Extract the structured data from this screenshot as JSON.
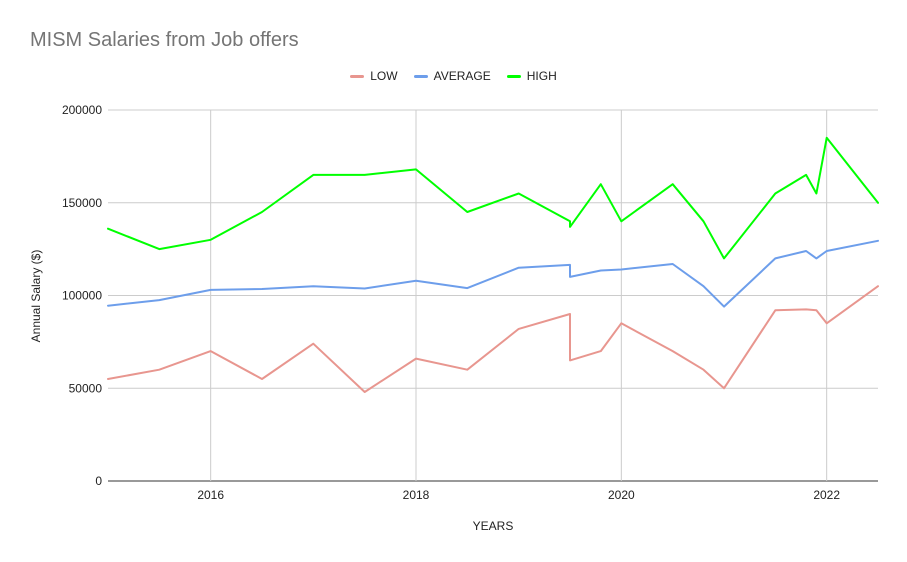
{
  "chart_data": {
    "type": "line",
    "title": "MISM Salaries from Job offers",
    "xlabel": "YEARS",
    "ylabel": "Annual Salary ($)",
    "xlim": [
      2015,
      2022.5
    ],
    "ylim": [
      0,
      200000
    ],
    "x_ticks": [
      2016,
      2018,
      2020,
      2022
    ],
    "x_tick_labels": [
      "2016",
      "2018",
      "2020",
      "2022"
    ],
    "y_ticks": [
      0,
      50000,
      100000,
      150000,
      200000
    ],
    "y_tick_labels": [
      "0",
      "50000",
      "100000",
      "150000",
      "200000"
    ],
    "grid": true,
    "legend_position": "top",
    "series": [
      {
        "name": "LOW",
        "color": "#e8968f",
        "points": [
          [
            2015,
            55000
          ],
          [
            2015.5,
            60000
          ],
          [
            2016,
            70000
          ],
          [
            2016.5,
            55000
          ],
          [
            2017,
            74000
          ],
          [
            2017.5,
            48000
          ],
          [
            2018,
            66000
          ],
          [
            2018.5,
            60000
          ],
          [
            2019,
            82000
          ],
          [
            2019.5,
            90000
          ],
          [
            2019.5,
            65000
          ],
          [
            2019.8,
            70000
          ],
          [
            2020,
            85000
          ],
          [
            2020.5,
            70000
          ],
          [
            2020.8,
            60000
          ],
          [
            2021,
            50000
          ],
          [
            2021.5,
            92000
          ],
          [
            2021.8,
            92500
          ],
          [
            2021.9,
            92000
          ],
          [
            2022,
            85000
          ],
          [
            2022.5,
            105000
          ]
        ]
      },
      {
        "name": "AVERAGE",
        "color": "#6d9eeb",
        "points": [
          [
            2015,
            94500
          ],
          [
            2015.5,
            97500
          ],
          [
            2016,
            103000
          ],
          [
            2016.5,
            103500
          ],
          [
            2017,
            105000
          ],
          [
            2017.5,
            103800
          ],
          [
            2018,
            108000
          ],
          [
            2018.5,
            104000
          ],
          [
            2019,
            115000
          ],
          [
            2019.5,
            116500
          ],
          [
            2019.5,
            110000
          ],
          [
            2019.8,
            113500
          ],
          [
            2020,
            114000
          ],
          [
            2020.5,
            117000
          ],
          [
            2020.8,
            105000
          ],
          [
            2021,
            94000
          ],
          [
            2021.5,
            120000
          ],
          [
            2021.8,
            124000
          ],
          [
            2021.9,
            120000
          ],
          [
            2022,
            124000
          ],
          [
            2022.5,
            129500
          ]
        ]
      },
      {
        "name": "HIGH",
        "color": "#00ff00",
        "points": [
          [
            2015,
            136000
          ],
          [
            2015.5,
            125000
          ],
          [
            2016,
            130000
          ],
          [
            2016.5,
            145000
          ],
          [
            2017,
            165000
          ],
          [
            2017.5,
            165000
          ],
          [
            2018,
            168000
          ],
          [
            2018.5,
            145000
          ],
          [
            2019,
            155000
          ],
          [
            2019.5,
            140000
          ],
          [
            2019.5,
            137000
          ],
          [
            2019.8,
            160000
          ],
          [
            2020,
            140000
          ],
          [
            2020.5,
            160000
          ],
          [
            2020.8,
            140000
          ],
          [
            2021,
            120000
          ],
          [
            2021.5,
            155000
          ],
          [
            2021.8,
            165000
          ],
          [
            2021.9,
            155000
          ],
          [
            2022,
            185000
          ],
          [
            2022.5,
            150000
          ]
        ]
      }
    ]
  }
}
